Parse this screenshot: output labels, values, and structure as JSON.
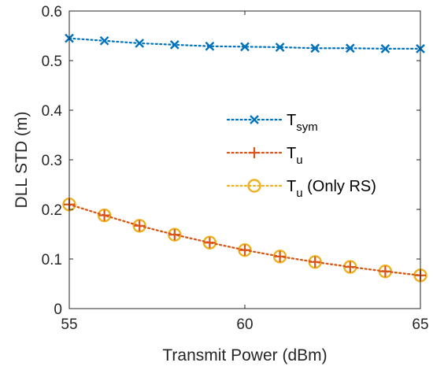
{
  "chart_data": {
    "type": "line",
    "title": "",
    "xlabel": "Transmit Power (dBm)",
    "ylabel": "DLL STD (m)",
    "xlim": [
      55,
      65
    ],
    "ylim": [
      0,
      0.6
    ],
    "xticks": [
      "55",
      "60",
      "65"
    ],
    "yticks": [
      "0",
      "0.1",
      "0.2",
      "0.3",
      "0.4",
      "0.5",
      "0.6"
    ],
    "grid": false,
    "legend_position": "center-right",
    "x": [
      55,
      56,
      57,
      58,
      59,
      60,
      61,
      62,
      63,
      64,
      65
    ],
    "series": [
      {
        "name": "T_sym",
        "legend_main": "T",
        "legend_sub": "sym",
        "legend_suffix": "",
        "marker": "x",
        "line_style": "dotted",
        "color": "#0072BD",
        "values": [
          0.545,
          0.54,
          0.535,
          0.532,
          0.529,
          0.528,
          0.527,
          0.525,
          0.525,
          0.524,
          0.524
        ]
      },
      {
        "name": "T_u",
        "legend_main": "T",
        "legend_sub": "u",
        "legend_suffix": "",
        "marker": "+",
        "line_style": "dotted",
        "color": "#D95319",
        "values": [
          0.21,
          0.188,
          0.167,
          0.149,
          0.133,
          0.118,
          0.105,
          0.094,
          0.084,
          0.075,
          0.067
        ]
      },
      {
        "name": "T_u (Only RS)",
        "legend_main": "T",
        "legend_sub": "u",
        "legend_suffix": " (Only RS)",
        "marker": "o",
        "line_style": "dotted",
        "color": "#EDB120",
        "values": [
          0.21,
          0.188,
          0.167,
          0.149,
          0.133,
          0.118,
          0.105,
          0.094,
          0.084,
          0.075,
          0.067
        ]
      }
    ]
  }
}
